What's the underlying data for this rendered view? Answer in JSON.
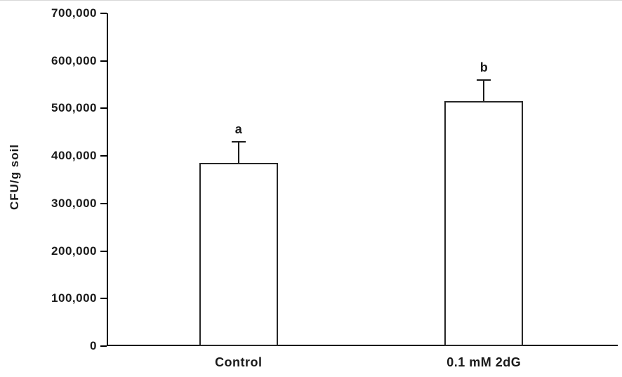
{
  "figure": {
    "background": "#ffffff"
  },
  "chart_data": {
    "type": "bar",
    "title": "",
    "xlabel": "",
    "ylabel": "CFU/g soil",
    "ylim": [
      0,
      700000
    ],
    "grid": false,
    "legend": "none",
    "yticks": [
      {
        "value": 0,
        "label": "0"
      },
      {
        "value": 100000,
        "label": "100,000"
      },
      {
        "value": 200000,
        "label": "200,000"
      },
      {
        "value": 300000,
        "label": "300,000"
      },
      {
        "value": 400000,
        "label": "400,000"
      },
      {
        "value": 500000,
        "label": "500,000"
      },
      {
        "value": 600000,
        "label": "600,000"
      },
      {
        "value": 700000,
        "label": "700,000"
      }
    ],
    "categories": [
      "Control",
      "0.1 mM 2dG"
    ],
    "values": [
      385000,
      515000
    ],
    "error_up": [
      45000,
      45000
    ],
    "sig_labels": [
      "a",
      "b"
    ],
    "bar_fill": "#ffffff",
    "bar_border_color": "#262626",
    "axis_color": "#000000",
    "text_color": "#1a1a1a"
  }
}
